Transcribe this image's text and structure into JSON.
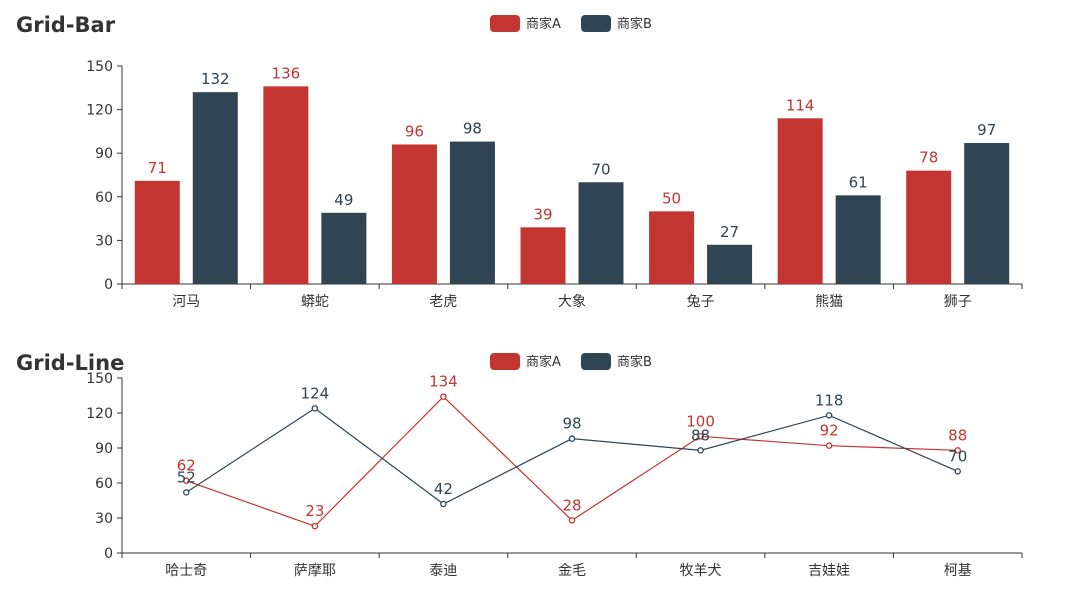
{
  "chart_data": [
    {
      "type": "bar",
      "title": "Grid-Bar",
      "categories": [
        "河马",
        "蟒蛇",
        "老虎",
        "大象",
        "兔子",
        "熊猫",
        "狮子"
      ],
      "series": [
        {
          "name": "商家A",
          "color": "#c23531",
          "values": [
            71,
            136,
            96,
            39,
            50,
            114,
            78
          ]
        },
        {
          "name": "商家B",
          "color": "#2f4554",
          "values": [
            132,
            49,
            98,
            70,
            27,
            61,
            97
          ]
        }
      ],
      "ylim": [
        0,
        150
      ],
      "yticks": [
        0,
        30,
        60,
        90,
        120,
        150
      ],
      "grid": false,
      "legend": "top-center",
      "data_labels": true
    },
    {
      "type": "line",
      "title": "Grid-Line",
      "categories": [
        "哈士奇",
        "萨摩耶",
        "泰迪",
        "金毛",
        "牧羊犬",
        "吉娃娃",
        "柯基"
      ],
      "series": [
        {
          "name": "商家A",
          "color": "#c23531",
          "values": [
            62,
            23,
            134,
            28,
            100,
            92,
            88
          ]
        },
        {
          "name": "商家B",
          "color": "#2f4554",
          "values": [
            52,
            124,
            42,
            98,
            88,
            118,
            70
          ]
        }
      ],
      "ylim": [
        0,
        150
      ],
      "yticks": [
        0,
        30,
        60,
        90,
        120,
        150
      ],
      "grid": false,
      "legend": "top-center",
      "data_labels": true
    }
  ]
}
